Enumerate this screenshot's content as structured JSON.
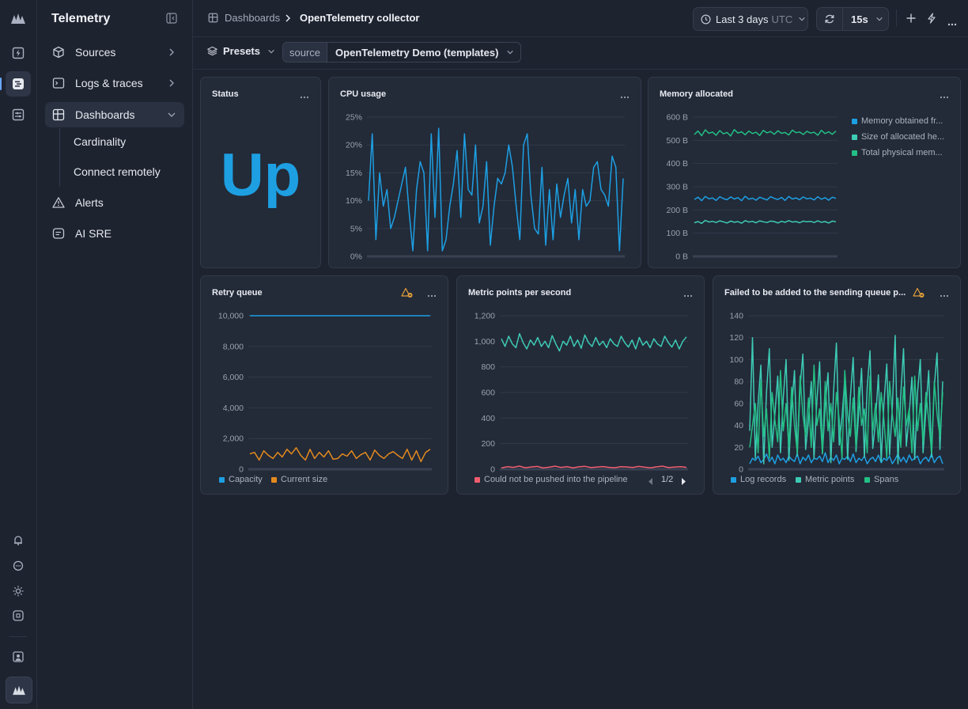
{
  "sidebar": {
    "title": "Telemetry",
    "items": [
      {
        "label": "Sources"
      },
      {
        "label": "Logs & traces"
      },
      {
        "label": "Dashboards"
      },
      {
        "label": "Alerts"
      },
      {
        "label": "AI SRE"
      }
    ],
    "subitems": [
      {
        "label": "Cardinality"
      },
      {
        "label": "Connect remotely"
      }
    ]
  },
  "breadcrumb": {
    "parent": "Dashboards",
    "current": "OpenTelemetry collector"
  },
  "toolbar": {
    "time_range": "Last 3 days",
    "timezone": "UTC",
    "refresh_interval": "15s"
  },
  "filters": {
    "presets_label": "Presets",
    "source_key": "source",
    "source_value": "OpenTelemetry Demo (templates)"
  },
  "colors": {
    "accent": "#1d9fe2",
    "blue": "#1d9fe2",
    "teal": "#3dcbb4",
    "green": "#23bf84",
    "orange": "#e38a1f",
    "red": "#f05d6e",
    "warning": "#e5a13b"
  },
  "panels": {
    "status": {
      "title": "Status",
      "value": "Up"
    },
    "cpu": {
      "title": "CPU usage"
    },
    "memory": {
      "title": "Memory allocated"
    },
    "retry": {
      "title": "Retry queue"
    },
    "metric_points": {
      "title": "Metric points per second",
      "legend_page": "1/2"
    },
    "failed": {
      "title": "Failed to be added to the sending queue p..."
    }
  },
  "chart_data": [
    {
      "type": "line",
      "title": "CPU usage",
      "yticks": [
        "0%",
        "5%",
        "10%",
        "15%",
        "20%",
        "25%"
      ],
      "ylim": [
        0,
        25
      ],
      "series": [
        {
          "name": "",
          "color": "#1d9fe2",
          "values": [
            10,
            22,
            3,
            15,
            9,
            12,
            5,
            7,
            10,
            13,
            16,
            8,
            1,
            12,
            17,
            15,
            1,
            22,
            7,
            23,
            1,
            3,
            9,
            13,
            19,
            7,
            22,
            12,
            11,
            20,
            6,
            9,
            17,
            2,
            9,
            14,
            13,
            15,
            20,
            16,
            9,
            3,
            20,
            22,
            11,
            5,
            4,
            16,
            2,
            12,
            3,
            13,
            7,
            11,
            14,
            6,
            12,
            3,
            12,
            9,
            10,
            16,
            17,
            12,
            11,
            9,
            18,
            16,
            1,
            14
          ]
        }
      ]
    },
    {
      "type": "line",
      "title": "Memory allocated",
      "yticks": [
        "0 B",
        "100 B",
        "200 B",
        "300 B",
        "400 B",
        "500 B",
        "600 B"
      ],
      "ylim": [
        0,
        600
      ],
      "series": [
        {
          "name": "Memory obtained fr...",
          "color": "#1d9fe2",
          "values": [
            245,
            255,
            240,
            258,
            248,
            252,
            241,
            257,
            249,
            244,
            256,
            247,
            253,
            240,
            259,
            246,
            251,
            242,
            255,
            249,
            243,
            257,
            250,
            245,
            254,
            241,
            258,
            247,
            252,
            244,
            256,
            248,
            251,
            243,
            257,
            246,
            253,
            242,
            255,
            250
          ]
        },
        {
          "name": "Size of allocated he...",
          "color": "#3dcbb4",
          "values": [
            145,
            150,
            142,
            155,
            148,
            151,
            146,
            153,
            149,
            144,
            152,
            147,
            150,
            143,
            154,
            148,
            151,
            145,
            153,
            149,
            146,
            152,
            150,
            144,
            151,
            147,
            154,
            148,
            150,
            145,
            152,
            149,
            151,
            146,
            153,
            147,
            150,
            144,
            152,
            149
          ]
        },
        {
          "name": "Total physical mem...",
          "color": "#23bf84",
          "values": [
            525,
            540,
            520,
            545,
            530,
            536,
            522,
            542,
            528,
            534,
            519,
            546,
            531,
            537,
            524,
            540,
            529,
            535,
            521,
            543,
            532,
            538,
            526,
            541,
            530,
            534,
            523,
            544,
            533,
            536,
            525,
            539,
            531,
            535,
            522,
            543,
            529,
            537,
            526,
            540
          ]
        }
      ]
    },
    {
      "type": "line",
      "title": "Retry queue",
      "yticks": [
        "0",
        "2,000",
        "4,000",
        "6,000",
        "8,000",
        "10,000"
      ],
      "ylim": [
        0,
        10000
      ],
      "series": [
        {
          "name": "Capacity",
          "color": "#1d9fe2",
          "values": [
            10000,
            10000,
            10000,
            10000,
            10000,
            10000,
            10000,
            10000,
            10000,
            10000,
            10000,
            10000,
            10000,
            10000,
            10000,
            10000,
            10000,
            10000,
            10000,
            10000
          ]
        },
        {
          "name": "Current size",
          "color": "#e38a1f",
          "values": [
            1000,
            1100,
            600,
            1200,
            900,
            700,
            1100,
            800,
            1300,
            1000,
            1400,
            900,
            600,
            1300,
            700,
            1100,
            800,
            1200,
            650,
            700,
            1000,
            850,
            1200,
            700,
            950,
            1100,
            600,
            1250,
            900,
            700,
            1000,
            1150,
            900,
            700,
            1300,
            600,
            1200,
            500,
            1100,
            1300
          ]
        }
      ]
    },
    {
      "type": "line",
      "title": "Metric points per second",
      "yticks": [
        "0",
        "200",
        "400",
        "600",
        "800",
        "1,000",
        "1,200"
      ],
      "ylim": [
        0,
        1200
      ],
      "series": [
        {
          "name": "",
          "color": "#3dcbb4",
          "values": [
            1020,
            960,
            1040,
            980,
            950,
            1060,
            990,
            940,
            1010,
            970,
            1030,
            960,
            1000,
            950,
            1045,
            980,
            925,
            1000,
            970,
            1040,
            960,
            1010,
            945,
            1050,
            990,
            960,
            1030,
            970,
            1000,
            950,
            1020,
            980,
            960,
            1040,
            990,
            955,
            1010,
            940,
            1030,
            970,
            1000,
            950,
            1020,
            980,
            960,
            1040,
            990,
            955,
            1010,
            940,
            1000,
            1035
          ]
        },
        {
          "name": "Could not be pushed into the pipeline",
          "color": "#f05d6e",
          "values": [
            10,
            20,
            15,
            25,
            12,
            18,
            22,
            10,
            16,
            24,
            14,
            20,
            11,
            19,
            23,
            13,
            17,
            21,
            15,
            12,
            20,
            18,
            14,
            22,
            16,
            11,
            19,
            24,
            13,
            17,
            20,
            15
          ]
        }
      ]
    },
    {
      "type": "line",
      "title": "Failed to be added to the sending queue p...",
      "yticks": [
        "0",
        "20",
        "40",
        "60",
        "80",
        "100",
        "120",
        "140"
      ],
      "ylim": [
        0,
        140
      ],
      "series": [
        {
          "name": "Log records",
          "color": "#1d9fe2",
          "values": [
            5,
            10,
            8,
            12,
            6,
            9,
            14,
            7,
            11,
            5,
            13,
            8,
            10,
            6,
            12,
            9,
            7,
            14,
            5,
            11,
            8,
            13,
            6,
            10,
            9,
            12,
            7,
            15,
            6,
            11,
            8,
            13,
            5,
            10,
            9,
            12,
            7,
            14,
            6,
            10,
            8,
            12,
            5,
            9,
            11,
            7,
            13,
            6,
            10,
            8,
            12,
            5,
            9,
            14,
            7,
            11,
            6,
            13,
            8,
            10,
            12,
            5,
            9,
            11,
            7,
            14,
            6,
            10,
            12,
            5
          ]
        },
        {
          "name": "Metric points",
          "color": "#3dcbb4",
          "values": [
            35,
            120,
            10,
            60,
            95,
            5,
            70,
            110,
            20,
            50,
            85,
            15,
            65,
            100,
            8,
            55,
            90,
            12,
            75,
            105,
            18,
            45,
            80,
            10,
            62,
            98,
            14,
            58,
            88,
            6,
            72,
            115,
            22,
            48,
            82,
            9,
            66,
            102,
            16,
            52,
            92,
            11,
            74,
            108,
            19,
            44,
            86,
            7,
            60,
            96,
            13,
            56,
            122,
            5,
            68,
            110,
            21,
            50,
            84,
            9,
            70,
            100,
            15,
            54,
            90,
            11,
            76,
            106,
            18,
            80
          ]
        },
        {
          "name": "Spans",
          "color": "#23bf84",
          "values": [
            20,
            40,
            60,
            15,
            80,
            30,
            55,
            10,
            70,
            45,
            25,
            90,
            35,
            60,
            20,
            75,
            40,
            15,
            85,
            50,
            30,
            65,
            20,
            95,
            40,
            55,
            15,
            80,
            35,
            60,
            25,
            70,
            45,
            10,
            90,
            50,
            30,
            65,
            20,
            75,
            40,
            55,
            15,
            85,
            35,
            60,
            25,
            70,
            45,
            10,
            80,
            50,
            30,
            65,
            20,
            75,
            40,
            55,
            15,
            85,
            35,
            60,
            25,
            70,
            45,
            15,
            80,
            50,
            30,
            70
          ]
        }
      ]
    }
  ]
}
